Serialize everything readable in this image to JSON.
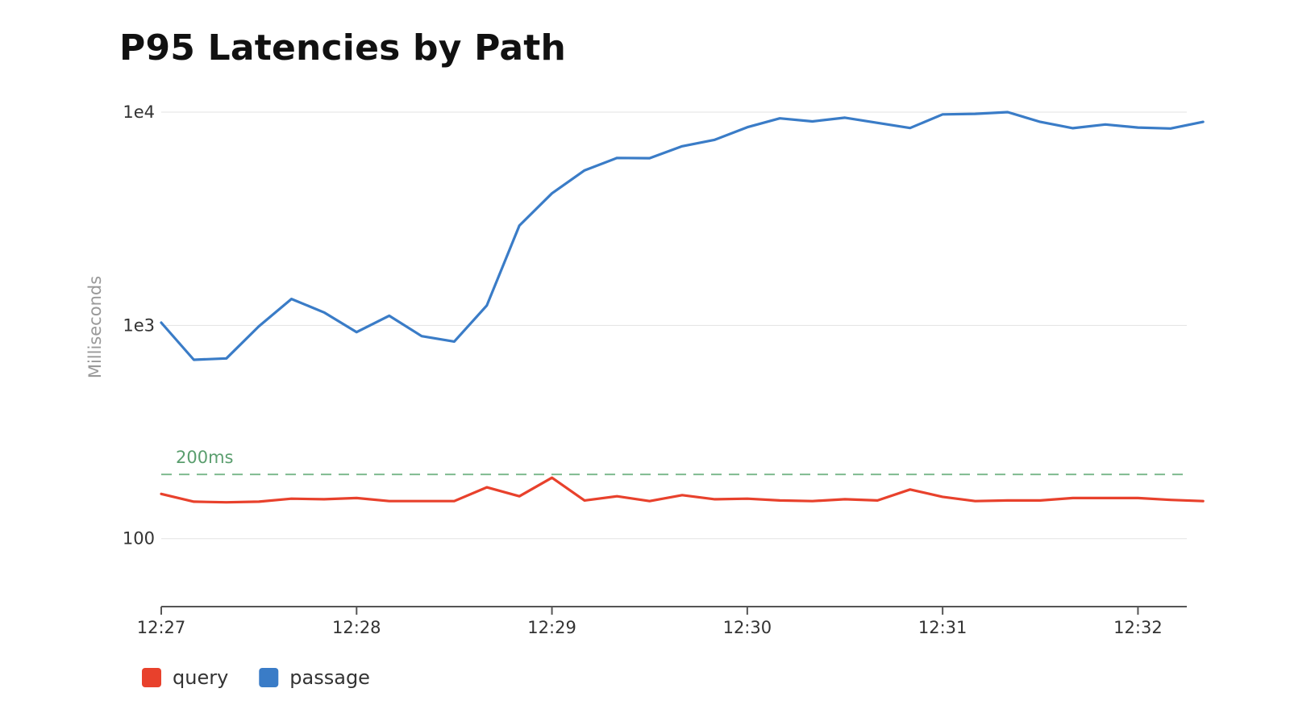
{
  "chart_data": {
    "type": "line",
    "title": "P95 Latencies by Path",
    "ylabel": "Milliseconds",
    "xlabel": "",
    "yscale": "log",
    "ylim": [
      48,
      10000
    ],
    "y_ticks": [
      100,
      1000,
      10000
    ],
    "y_tick_labels": [
      "100",
      "1e3",
      "1e4"
    ],
    "x_ticks": [
      "12:27",
      "12:28",
      "12:29",
      "12:30",
      "12:31",
      "12:32"
    ],
    "x_start": "12:27:00",
    "x_end": "12:32:15",
    "sample_interval_seconds": 10,
    "grid": true,
    "legend_position": "bottom-left",
    "threshold": {
      "value": 200,
      "label": "200ms",
      "color": "#7fba8f"
    },
    "series": [
      {
        "name": "query",
        "color": "#e8412c",
        "values": [
          162,
          149,
          148,
          149,
          154,
          153,
          155,
          150,
          150,
          150,
          174,
          158,
          193,
          151,
          158,
          150,
          160,
          153,
          154,
          151,
          150,
          153,
          151,
          170,
          157,
          150,
          151,
          151,
          155,
          155,
          155,
          152,
          150
        ]
      },
      {
        "name": "passage",
        "color": "#3a7cc7",
        "values": [
          1030,
          690,
          700,
          990,
          1330,
          1150,
          930,
          1110,
          890,
          840,
          1240,
          2940,
          4160,
          5330,
          6100,
          6080,
          6920,
          7420,
          8500,
          9350,
          9050,
          9420,
          8910,
          8420,
          9760,
          9820,
          10000,
          9000,
          8410,
          8750,
          8470,
          8380,
          9000
        ]
      }
    ]
  }
}
